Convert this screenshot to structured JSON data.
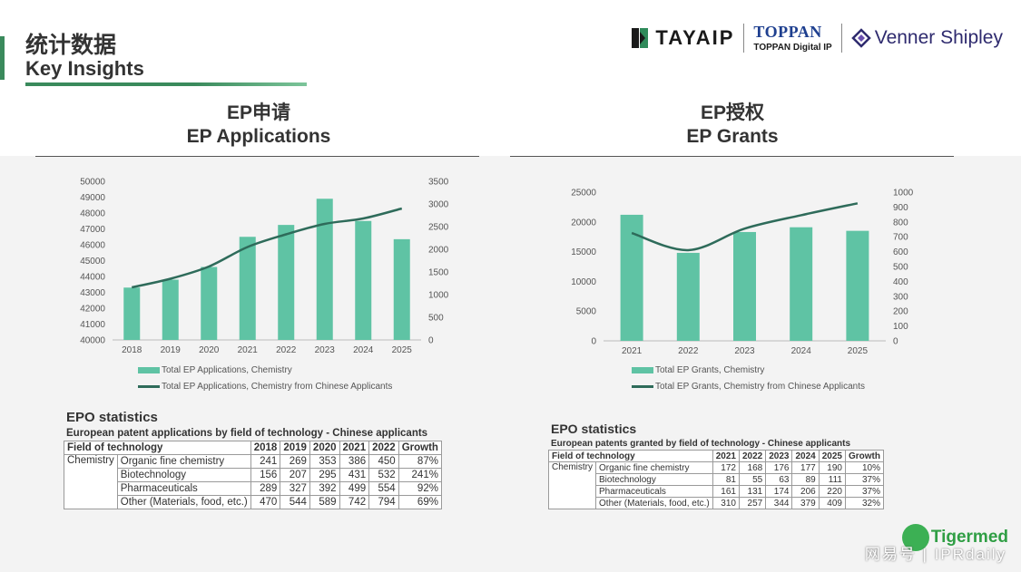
{
  "header": {
    "title_zh": "统计数据",
    "title_en": "Key Insights",
    "logos": {
      "tayaip": "TAYAIP",
      "toppan": "TOPPAN",
      "toppan_sub": "TOPPAN Digital IP",
      "venner": "Venner Shipley"
    }
  },
  "sections": {
    "applications": {
      "title_zh": "EP申请",
      "title_en": "EP Applications"
    },
    "grants": {
      "title_zh": "EP授权",
      "title_en": "EP Grants"
    }
  },
  "colors": {
    "bar": "#5fc3a4",
    "line": "#2e6b5a",
    "accent": "#3a8a5c"
  },
  "chart_data": [
    {
      "type": "bar",
      "categories": [
        "2018",
        "2019",
        "2020",
        "2021",
        "2022",
        "2023",
        "2024",
        "2025"
      ],
      "series": [
        {
          "name": "Total EP Applications, Chemistry",
          "kind": "bar",
          "axis": "left",
          "values": [
            43300,
            43800,
            44600,
            46500,
            47250,
            48900,
            47500,
            46350
          ]
        },
        {
          "name": "Total EP Applications, Chemistry from Chinese Applicants",
          "kind": "line",
          "axis": "right",
          "values": [
            1160,
            1350,
            1620,
            2050,
            2330,
            2560,
            2680,
            2900
          ]
        }
      ],
      "ylim_left": [
        40000,
        50000
      ],
      "yticks_left": [
        40000,
        41000,
        42000,
        43000,
        44000,
        45000,
        46000,
        47000,
        48000,
        49000,
        50000
      ],
      "ylim_right": [
        0,
        3500
      ],
      "yticks_right": [
        0,
        500,
        1000,
        1500,
        2000,
        2500,
        3000,
        3500
      ],
      "legend": "bottom"
    },
    {
      "type": "bar",
      "categories": [
        "2021",
        "2022",
        "2023",
        "2024",
        "2025"
      ],
      "series": [
        {
          "name": "Total EP Grants, Chemistry",
          "kind": "bar",
          "axis": "left",
          "values": [
            21200,
            14800,
            18300,
            19100,
            18500
          ]
        },
        {
          "name": "Total EP Grants, Chemistry from Chinese Applicants",
          "kind": "line",
          "axis": "right",
          "values": [
            725,
            610,
            755,
            845,
            925
          ]
        }
      ],
      "ylim_left": [
        0,
        25000
      ],
      "yticks_left": [
        0,
        5000,
        10000,
        15000,
        20000,
        25000
      ],
      "ylim_right": [
        0,
        1000
      ],
      "yticks_right": [
        0,
        100,
        200,
        300,
        400,
        500,
        600,
        700,
        800,
        900,
        1000
      ],
      "legend": "bottom"
    }
  ],
  "tables": {
    "applications": {
      "title": "EPO statistics",
      "subtitle": "European patent applications by field of technology - Chinese applicants",
      "headers": [
        "Field of technology",
        "2018",
        "2019",
        "2020",
        "2021",
        "2022",
        "Growth"
      ],
      "group": "Chemistry",
      "rows": [
        {
          "label": "Organic fine chemistry",
          "cells": [
            "241",
            "269",
            "353",
            "386",
            "450",
            "87%"
          ]
        },
        {
          "label": "Biotechnology",
          "cells": [
            "156",
            "207",
            "295",
            "431",
            "532",
            "241%"
          ]
        },
        {
          "label": "Pharmaceuticals",
          "cells": [
            "289",
            "327",
            "392",
            "499",
            "554",
            "92%"
          ]
        },
        {
          "label": "Other (Materials, food, etc.)",
          "cells": [
            "470",
            "544",
            "589",
            "742",
            "794",
            "69%"
          ]
        }
      ]
    },
    "grants": {
      "title": "EPO statistics",
      "subtitle": "European patents granted by field of technology - Chinese applicants",
      "headers": [
        "Field of technology",
        "2021",
        "2022",
        "2023",
        "2024",
        "2025",
        "Growth"
      ],
      "group": "Chemistry",
      "rows": [
        {
          "label": "Organic fine chemistry",
          "cells": [
            "172",
            "168",
            "176",
            "177",
            "190",
            "10%"
          ]
        },
        {
          "label": "Biotechnology",
          "cells": [
            "81",
            "55",
            "63",
            "89",
            "111",
            "37%"
          ]
        },
        {
          "label": "Pharmaceuticals",
          "cells": [
            "161",
            "131",
            "174",
            "206",
            "220",
            "37%"
          ]
        },
        {
          "label": "Other (Materials, food, etc.)",
          "cells": [
            "310",
            "257",
            "344",
            "379",
            "409",
            "32%"
          ]
        }
      ]
    }
  },
  "watermark": {
    "brand": "Tigermed",
    "overlay": "网易号 | IPRdaily"
  }
}
